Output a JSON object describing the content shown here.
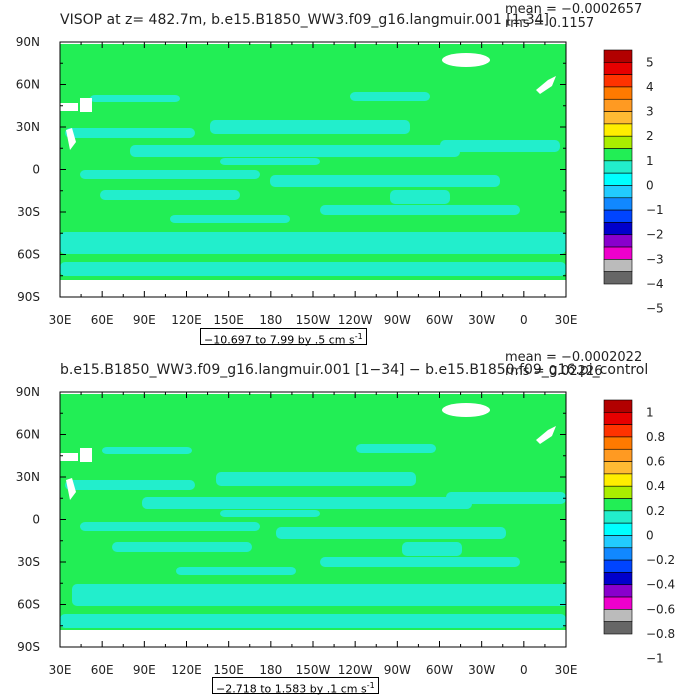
{
  "chart_data": [
    {
      "type": "heatmap",
      "title": "VISOP at z= 482.7m, b.e15.B1850_WW3.f09_g16.langmuir.001 [1-34]",
      "stats": {
        "mean": "mean = −0.0002657",
        "rms": "rms = 0.1157"
      },
      "range_text": "−10.697 to 7.99 by .5 cm s",
      "range_unit_exp": "-1",
      "xtick_labels": [
        "30E",
        "60E",
        "90E",
        "120E",
        "150E",
        "180",
        "150W",
        "120W",
        "90W",
        "60W",
        "30W",
        "0",
        "30E"
      ],
      "ytick_labels": [
        "90N",
        "60N",
        "30N",
        "0",
        "30S",
        "60S",
        "90S"
      ],
      "colorbar": {
        "labels": [
          "5",
          "4",
          "3",
          "2",
          "1",
          "0",
          "−1",
          "−2",
          "−3",
          "−4",
          "−5"
        ],
        "levels": [
          5,
          4,
          3,
          2,
          1,
          0,
          -1,
          -2,
          -3,
          -4,
          -5
        ]
      }
    },
    {
      "type": "heatmap",
      "title": "b.e15.B1850_WW3.f09_g16.langmuir.001 [1−34] − b.e15.B1850.f09_g16.pi_control",
      "stats": {
        "mean": "mean = −0.0002022",
        "rms": "rms = 0.02226"
      },
      "range_text": "−2.718 to 1.583 by .1 cm s",
      "range_unit_exp": "-1",
      "xtick_labels": [
        "30E",
        "60E",
        "90E",
        "120E",
        "150E",
        "180",
        "150W",
        "120W",
        "90W",
        "60W",
        "30W",
        "0",
        "30E"
      ],
      "ytick_labels": [
        "90N",
        "60N",
        "30N",
        "0",
        "30S",
        "60S",
        "90S"
      ],
      "colorbar": {
        "labels": [
          "1",
          "0.8",
          "0.6",
          "0.4",
          "0.2",
          "0",
          "−0.2",
          "−0.4",
          "−0.6",
          "−0.8",
          "−1"
        ],
        "levels": [
          1,
          0.8,
          0.6,
          0.4,
          0.2,
          0,
          -0.2,
          -0.4,
          -0.6,
          -0.8,
          -1
        ]
      }
    }
  ],
  "colors": {
    "background_field": "#22ee55",
    "band_field": "#22eecc",
    "land": "#ffffff",
    "palette": [
      "#b20000",
      "#e60000",
      "#ff3300",
      "#ff7a00",
      "#ff9a22",
      "#ffbb33",
      "#ffee00",
      "#aaee00",
      "#22ee55",
      "#22eecc",
      "#00ffff",
      "#22ccff",
      "#1188ff",
      "#0044ff",
      "#0000cc",
      "#8800cc",
      "#ee00cc",
      "#bbbbbb",
      "#666666"
    ]
  }
}
